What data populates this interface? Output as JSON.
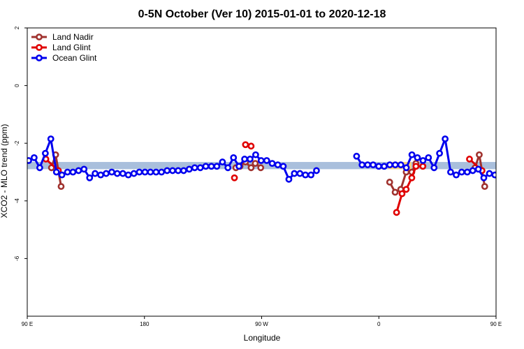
{
  "chart_data": {
    "type": "line",
    "title": "0-5N October (Ver 10)   2015-01-01 to 2020-12-18",
    "xlabel": "Longitude",
    "ylabel": "XCO2 - MLO trend (ppm)",
    "xlim": [
      90,
      450
    ],
    "ylim": [
      -8,
      2
    ],
    "xticks": [
      {
        "value": 90,
        "label": "90 E"
      },
      {
        "value": 180,
        "label": "180"
      },
      {
        "value": 270,
        "label": "90 W"
      },
      {
        "value": 360,
        "label": "0"
      },
      {
        "value": 450,
        "label": "90 E"
      },
      {
        "value": 540,
        "label": "180"
      }
    ],
    "yticks": [
      {
        "value": 2,
        "label": "2"
      },
      {
        "value": 0,
        "label": "0"
      },
      {
        "value": -2,
        "label": "-2"
      },
      {
        "value": -4,
        "label": "-4"
      },
      {
        "value": -6,
        "label": "-6"
      }
    ],
    "grid": false,
    "legend_position": "top-left",
    "bands": [
      {
        "x": [
          90,
          540
        ],
        "y": [
          -2.9,
          -2.65
        ],
        "color": "#a9bfdc"
      },
      {
        "x": [
          367,
          385
        ],
        "y": [
          -2.9,
          -2.65
        ],
        "color": "#f7d57f"
      }
    ],
    "series": [
      {
        "name": "Land Nadir",
        "color": "#a0322e",
        "segments": [
          [
            [
              108.6,
              -2.85
            ],
            [
              111.8,
              -2.4
            ],
            [
              116,
              -3.5
            ]
          ],
          [
            [
              250.2,
              -2.85
            ],
            [
              253.4,
              -2.8
            ],
            [
              257.6,
              -2.65
            ],
            [
              261.9,
              -2.85
            ],
            [
              265.1,
              -2.7
            ],
            [
              269.3,
              -2.85
            ]
          ],
          [
            [
              368.3,
              -3.35
            ],
            [
              372.5,
              -3.7
            ],
            [
              376.8,
              -3.6
            ],
            [
              381,
              -3.0
            ],
            [
              385.3,
              -3.0
            ],
            [
              388.5,
              -2.7
            ]
          ],
          [
            [
              433.9,
              -2.85
            ],
            [
              437.1,
              -2.4
            ],
            [
              441.3,
              -3.5
            ]
          ]
        ]
      },
      {
        "name": "Land Glint",
        "color": "#e00000",
        "segments": [
          [
            [
              104.3,
              -2.55
            ],
            [
              113.9,
              -2.95
            ]
          ],
          [
            [
              249.1,
              -3.2
            ]
          ],
          [
            [
              257.6,
              -2.05
            ],
            [
              261.9,
              -2.1
            ]
          ],
          [
            [
              373.6,
              -4.4
            ],
            [
              377.8,
              -3.75
            ],
            [
              381,
              -3.6
            ],
            [
              385.3,
              -3.2
            ],
            [
              388.5,
              -2.8
            ],
            [
              393.8,
              -2.8
            ]
          ],
          [
            [
              429.6,
              -2.55
            ],
            [
              439.2,
              -2.95
            ]
          ]
        ]
      },
      {
        "name": "Ocean Glint",
        "color": "#0000ee",
        "segments": [
          [
            [
              91.1,
              -2.6
            ],
            [
              95.3,
              -2.5
            ],
            [
              99.6,
              -2.85
            ],
            [
              103.9,
              -2.35
            ],
            [
              108.1,
              -1.85
            ],
            [
              112.4,
              -3.0
            ],
            [
              116.6,
              -3.1
            ],
            [
              120.9,
              -3.0
            ],
            [
              125.1,
              -3.0
            ],
            [
              129.4,
              -2.95
            ],
            [
              133.6,
              -2.9
            ],
            [
              137.9,
              -3.2
            ],
            [
              142.1,
              -3.05
            ],
            [
              146.4,
              -3.1
            ],
            [
              150.6,
              -3.05
            ],
            [
              154.9,
              -3.0
            ],
            [
              159.1,
              -3.05
            ],
            [
              163.4,
              -3.05
            ],
            [
              167.6,
              -3.1
            ],
            [
              171.9,
              -3.05
            ],
            [
              176.1,
              -3.0
            ],
            [
              180.4,
              -3.0
            ],
            [
              184.6,
              -3.0
            ],
            [
              188.9,
              -3.0
            ],
            [
              193.1,
              -3.0
            ],
            [
              197.4,
              -2.95
            ],
            [
              201.6,
              -2.95
            ],
            [
              205.9,
              -2.95
            ],
            [
              210.1,
              -2.95
            ],
            [
              214.4,
              -2.9
            ],
            [
              218.6,
              -2.85
            ],
            [
              222.9,
              -2.85
            ],
            [
              227.1,
              -2.8
            ],
            [
              231.4,
              -2.8
            ],
            [
              235.6,
              -2.8
            ],
            [
              239.9,
              -2.65
            ],
            [
              244.1,
              -2.85
            ],
            [
              248.4,
              -2.5
            ],
            [
              252.6,
              -2.8
            ],
            [
              256.9,
              -2.55
            ],
            [
              261.1,
              -2.55
            ],
            [
              265.4,
              -2.4
            ],
            [
              269.6,
              -2.6
            ],
            [
              273.9,
              -2.6
            ],
            [
              278.1,
              -2.7
            ],
            [
              282.4,
              -2.75
            ],
            [
              286.6,
              -2.8
            ],
            [
              290.9,
              -3.25
            ],
            [
              295.1,
              -3.05
            ],
            [
              299.4,
              -3.05
            ],
            [
              303.6,
              -3.1
            ],
            [
              307.9,
              -3.1
            ],
            [
              312.1,
              -2.95
            ]
          ],
          [
            [
              342.9,
              -2.45
            ],
            [
              347.1,
              -2.75
            ],
            [
              351.4,
              -2.75
            ],
            [
              355.6,
              -2.75
            ],
            [
              359.9,
              -2.8
            ],
            [
              364.1,
              -2.8
            ],
            [
              368.4,
              -2.75
            ],
            [
              372.6,
              -2.75
            ],
            [
              376.9,
              -2.75
            ],
            [
              381.1,
              -2.85
            ],
            [
              385.4,
              -2.4
            ],
            [
              389.6,
              -2.5
            ],
            [
              393.9,
              -2.6
            ],
            [
              398.1,
              -2.5
            ],
            [
              402.4,
              -2.85
            ],
            [
              406.6,
              -2.35
            ],
            [
              410.9,
              -1.85
            ],
            [
              415.1,
              -3.0
            ],
            [
              419.4,
              -3.1
            ],
            [
              423.6,
              -3.0
            ],
            [
              427.9,
              -3.0
            ],
            [
              432.1,
              -2.95
            ],
            [
              436.4,
              -2.9
            ],
            [
              440.6,
              -3.2
            ],
            [
              444.9,
              -3.05
            ],
            [
              449.1,
              -3.1
            ],
            [
              453.4,
              -3.05
            ],
            [
              457.6,
              -3.0
            ],
            [
              461.9,
              -3.05
            ],
            [
              466.1,
              -3.05
            ]
          ]
        ]
      }
    ]
  }
}
